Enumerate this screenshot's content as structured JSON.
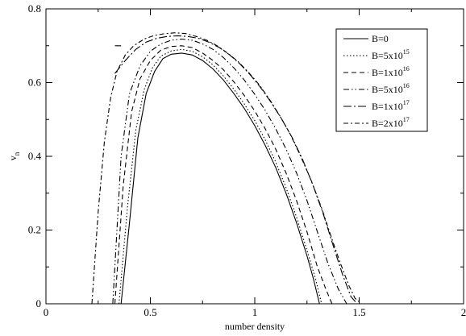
{
  "chart_data": {
    "type": "line",
    "title": "",
    "xlabel": "number density",
    "ylabel": "v",
    "ylabel_subscript": "n",
    "xlim": [
      0,
      2
    ],
    "ylim": [
      0,
      0.8
    ],
    "x_ticks": [
      0,
      0.5,
      1,
      1.5,
      2
    ],
    "x_tick_labels": [
      "0",
      "0.5",
      "1",
      "1.5",
      "2"
    ],
    "y_ticks": [
      0,
      0.2,
      0.4,
      0.6,
      0.8
    ],
    "y_tick_labels": [
      "0",
      "0.2",
      "0.4",
      "0.6",
      "0.8"
    ],
    "grid": false,
    "legend_position": "top-right",
    "series": [
      {
        "name": "B=0",
        "name_base": "B=0",
        "name_exp": "",
        "dash": "solid",
        "x": [
          0.36,
          0.4,
          0.44,
          0.48,
          0.52,
          0.56,
          0.6,
          0.65,
          0.7,
          0.75,
          0.8,
          0.85,
          0.9,
          0.95,
          1.0,
          1.05,
          1.1,
          1.15,
          1.2,
          1.25,
          1.28,
          1.31,
          1.34,
          1.4,
          1.5,
          1.6,
          1.68
        ],
        "y": [
          0.0,
          0.22,
          0.45,
          0.57,
          0.63,
          0.665,
          0.677,
          0.68,
          0.675,
          0.66,
          0.637,
          0.607,
          0.57,
          0.53,
          0.483,
          0.43,
          0.37,
          0.3,
          0.22,
          0.13,
          0.07,
          0.0,
          0.0,
          0.0,
          0.0,
          0.0,
          0.0
        ]
      },
      {
        "name": "B=5x10^15",
        "name_base": "B=5x10",
        "name_exp": "15",
        "dash": "dotted",
        "x": [
          0.35,
          0.39,
          0.43,
          0.47,
          0.51,
          0.55,
          0.6,
          0.65,
          0.7,
          0.75,
          0.8,
          0.85,
          0.9,
          0.95,
          1.0,
          1.05,
          1.1,
          1.15,
          1.2,
          1.25,
          1.29,
          1.32
        ],
        "y": [
          0.0,
          0.26,
          0.47,
          0.58,
          0.64,
          0.672,
          0.686,
          0.69,
          0.685,
          0.67,
          0.648,
          0.618,
          0.582,
          0.542,
          0.497,
          0.445,
          0.385,
          0.315,
          0.235,
          0.145,
          0.07,
          0.0
        ]
      },
      {
        "name": "B=1x10^16",
        "name_base": "B=1x10",
        "name_exp": "16",
        "dash": "dashed",
        "x": [
          0.33,
          0.37,
          0.41,
          0.45,
          0.5,
          0.55,
          0.6,
          0.65,
          0.7,
          0.75,
          0.8,
          0.85,
          0.9,
          0.95,
          1.0,
          1.05,
          1.1,
          1.15,
          1.2,
          1.25,
          1.3,
          1.34,
          1.37
        ],
        "y": [
          0.0,
          0.32,
          0.52,
          0.61,
          0.66,
          0.688,
          0.698,
          0.7,
          0.695,
          0.68,
          0.66,
          0.635,
          0.602,
          0.565,
          0.523,
          0.475,
          0.42,
          0.355,
          0.28,
          0.195,
          0.1,
          0.04,
          0.0
        ]
      },
      {
        "name": "B=5x10^16",
        "name_base": "B=5x10",
        "name_exp": "16",
        "dash": "dashdotdot",
        "x": [
          0.32,
          0.36,
          0.4,
          0.45,
          0.5,
          0.55,
          0.6,
          0.65,
          0.7,
          0.75,
          0.8,
          0.85,
          0.9,
          0.95,
          1.0,
          1.05,
          1.1,
          1.15,
          1.2,
          1.25,
          1.3,
          1.35,
          1.4,
          1.44
        ],
        "y": [
          0.0,
          0.4,
          0.57,
          0.645,
          0.685,
          0.705,
          0.715,
          0.718,
          0.715,
          0.705,
          0.69,
          0.668,
          0.64,
          0.607,
          0.568,
          0.525,
          0.475,
          0.42,
          0.355,
          0.28,
          0.195,
          0.11,
          0.04,
          0.0
        ]
      },
      {
        "name": "B=1x10^17",
        "name_base": "B=1x10",
        "name_exp": "17",
        "dash": "longdashdot",
        "x": [
          0.33,
          0.38,
          0.43,
          0.48,
          0.53,
          0.58,
          0.63,
          0.68,
          0.73,
          0.78,
          0.83,
          0.88,
          0.93,
          0.98,
          1.03,
          1.08,
          1.13,
          1.18,
          1.23,
          1.28,
          1.33,
          1.38,
          1.42,
          1.46,
          1.49
        ],
        "y": [
          0.625,
          0.66,
          0.69,
          0.71,
          0.72,
          0.725,
          0.727,
          0.725,
          0.72,
          0.71,
          0.695,
          0.675,
          0.65,
          0.62,
          0.585,
          0.545,
          0.5,
          0.45,
          0.39,
          0.32,
          0.24,
          0.15,
          0.08,
          0.02,
          0.0
        ]
      },
      {
        "name": "B=2x10^17",
        "name_base": "B=2x10",
        "name_exp": "17",
        "dash": "dashdot",
        "x": [
          0.22,
          0.25,
          0.28,
          0.31,
          0.34,
          0.38,
          0.42,
          0.47,
          0.52,
          0.57,
          0.62,
          0.67,
          0.72,
          0.77,
          0.82,
          0.87,
          0.92,
          0.97,
          1.02,
          1.07,
          1.12,
          1.17,
          1.22,
          1.27,
          1.32,
          1.37,
          1.41,
          1.45,
          1.48,
          1.51
        ],
        "y": [
          0.0,
          0.25,
          0.44,
          0.56,
          0.63,
          0.675,
          0.7,
          0.718,
          0.728,
          0.733,
          0.735,
          0.733,
          0.725,
          0.715,
          0.7,
          0.68,
          0.657,
          0.628,
          0.595,
          0.555,
          0.51,
          0.46,
          0.4,
          0.335,
          0.26,
          0.175,
          0.11,
          0.05,
          0.015,
          0.0
        ]
      }
    ],
    "extra_segments": [
      {
        "series": "B=1x10^17",
        "x": [
          0.33,
          0.36
        ],
        "y": [
          0.7,
          0.7
        ],
        "dash": "longdashdot"
      }
    ]
  }
}
